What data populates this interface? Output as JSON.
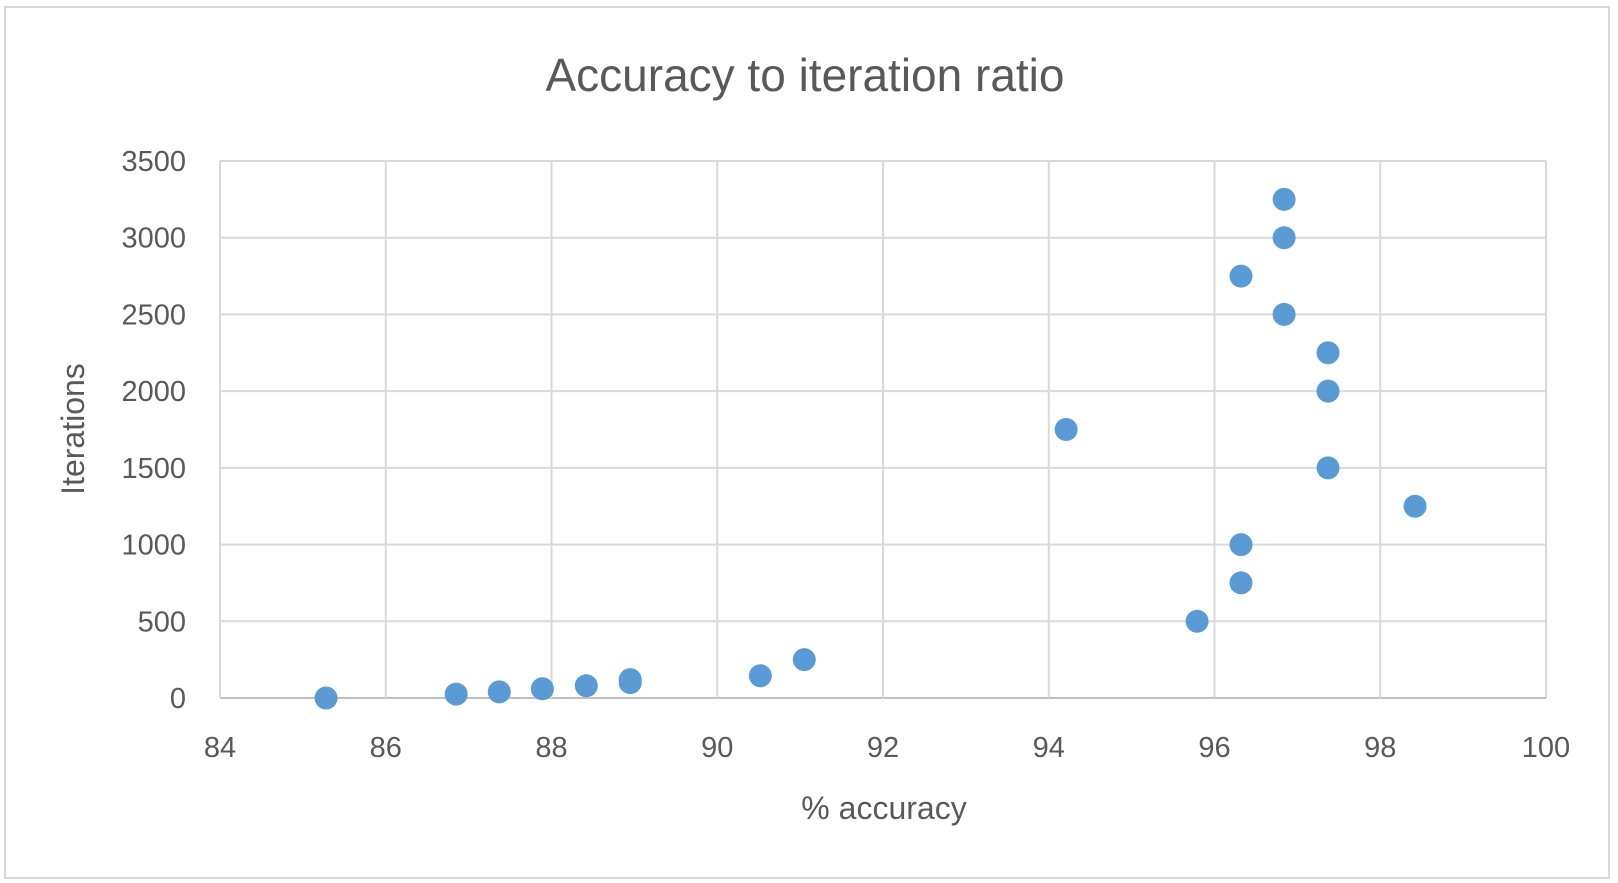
{
  "chart_data": {
    "type": "scatter",
    "title": "Accuracy to iteration ratio",
    "xlabel": "% accuracy",
    "ylabel": "Iterations",
    "xlim": [
      84,
      100
    ],
    "ylim": [
      0,
      3500
    ],
    "xticks": [
      84,
      86,
      88,
      90,
      92,
      94,
      96,
      98,
      100
    ],
    "yticks": [
      0,
      500,
      1000,
      1500,
      2000,
      2500,
      3000,
      3500
    ],
    "grid": true,
    "marker_color": "#5b9bd5",
    "points": [
      {
        "x": 85.28,
        "y": 0
      },
      {
        "x": 86.85,
        "y": 25
      },
      {
        "x": 87.37,
        "y": 40
      },
      {
        "x": 87.89,
        "y": 60
      },
      {
        "x": 88.42,
        "y": 80
      },
      {
        "x": 88.95,
        "y": 100
      },
      {
        "x": 88.95,
        "y": 120
      },
      {
        "x": 90.52,
        "y": 145
      },
      {
        "x": 91.05,
        "y": 250
      },
      {
        "x": 94.21,
        "y": 1750
      },
      {
        "x": 95.79,
        "y": 500
      },
      {
        "x": 96.32,
        "y": 750
      },
      {
        "x": 96.32,
        "y": 1000
      },
      {
        "x": 96.32,
        "y": 2750
      },
      {
        "x": 96.84,
        "y": 2500
      },
      {
        "x": 96.84,
        "y": 3000
      },
      {
        "x": 96.84,
        "y": 3250
      },
      {
        "x": 97.37,
        "y": 1500
      },
      {
        "x": 97.37,
        "y": 2000
      },
      {
        "x": 97.37,
        "y": 2250
      },
      {
        "x": 98.42,
        "y": 1250
      }
    ]
  }
}
